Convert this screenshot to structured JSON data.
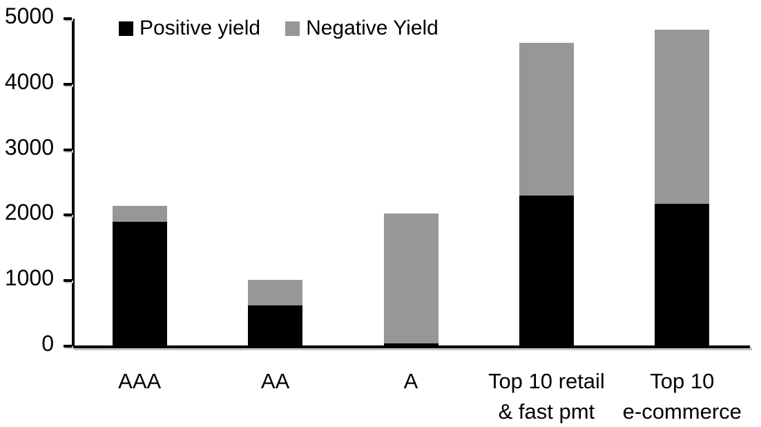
{
  "chart_data": {
    "type": "bar",
    "stacked": true,
    "categories": [
      "AAA",
      "AA",
      "A",
      "Top 10 retail\n& fast pmt",
      "Top 10\ne-commerce"
    ],
    "series": [
      {
        "name": "Positive yield",
        "color": "#000000",
        "values": [
          1900,
          620,
          40,
          2300,
          2170
        ]
      },
      {
        "name": "Negative Yield",
        "color": "#979797",
        "values": [
          240,
          390,
          1990,
          2330,
          2660
        ]
      }
    ],
    "ylim": [
      0,
      5000
    ],
    "yticks": [
      0,
      1000,
      2000,
      3000,
      4000,
      5000
    ],
    "legend_position": "top-inside",
    "grid": false,
    "axis_color": "#000000",
    "background_color": "#ffffff"
  }
}
